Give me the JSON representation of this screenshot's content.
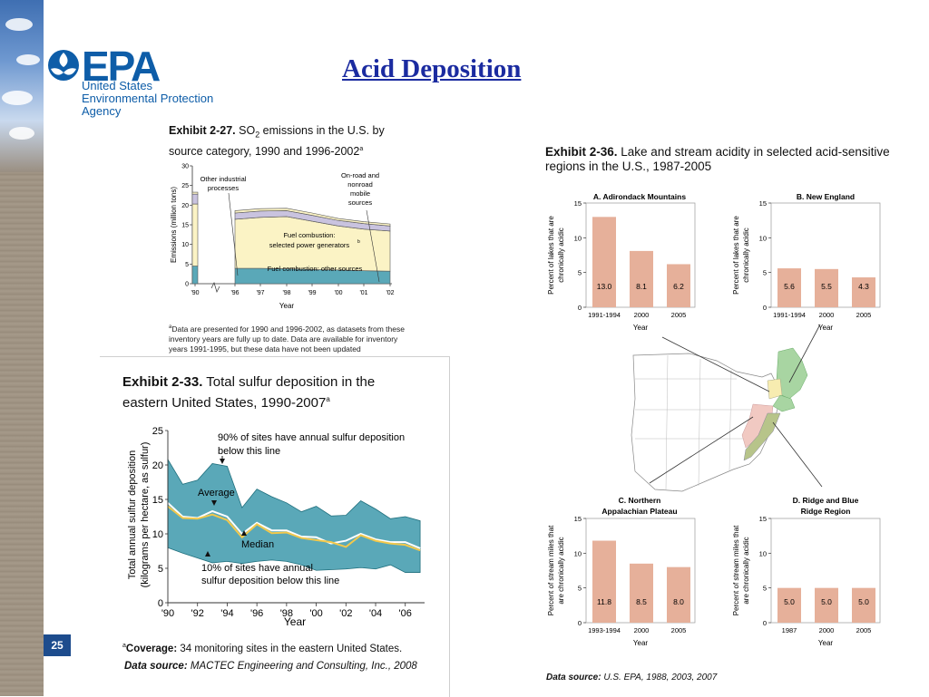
{
  "slide": {
    "title": "Acid Deposition",
    "page_number": "25",
    "logo": {
      "word": "EPA",
      "line1": "United States",
      "line2": "Environmental Protection",
      "line3": "Agency"
    }
  },
  "exhibit_27": {
    "label": "Exhibit 2-27.",
    "title_pre": "SO",
    "title_sub": "2",
    "title_post": " emissions in the U.S. by source category, 1990 and 1996-2002",
    "title_sup": "a",
    "footnote_mark": "a",
    "footnote_text": "Data are presented for 1990 and 1996-2002, as datasets from these inventory years are fully up to date. Data are available for inventory years 1991-1995, but these data have not been updated"
  },
  "exhibit_33": {
    "label": "Exhibit 2-33.",
    "title": " Total sulfur deposition in the eastern United States, 1990-2007",
    "title_sup": "a",
    "coverage_mark": "a",
    "coverage_label": "Coverage:",
    "coverage_text": " 34 monitoring sites in the eastern United States.",
    "source_label": "Data source:",
    "source_text": " MACTEC Engineering and Consulting, Inc., 2008"
  },
  "exhibit_36": {
    "label": "Exhibit 2-36.",
    "title": " Lake and stream acidity in selected acid-sensitive regions in the U.S., 1987-2005",
    "source_label": "Data source:",
    "source_text": " U.S. EPA, 1988, 2003, 2007"
  },
  "colors": {
    "bar": "#e6b09a",
    "teal_band": "#5aa8b8",
    "yellow": "#fbf3c5",
    "teal_dark": "#1f6e7c",
    "average_line": "#ffffff",
    "median_line": "#f2c84b",
    "lavender": "#c9c3df",
    "map_green": "#a8d5a2",
    "map_pink": "#f1c9c2",
    "map_yellow": "#f7ecb0",
    "map_olive": "#b7c48a"
  },
  "chart_data": [
    {
      "id": "exhibit-2-27",
      "type": "area",
      "x": [
        "'90",
        "'96",
        "'97",
        "'98",
        "'99",
        "'00",
        "'01",
        "'02"
      ],
      "xlabel": "Year",
      "ylabel": "Emissions (million tons)",
      "yticks": [
        "0",
        "5",
        "10",
        "15",
        "20",
        "25",
        "30"
      ],
      "ylim": [
        0,
        30
      ],
      "series": [
        {
          "name": "Fuel combustion: other sources",
          "label_sup": "",
          "values": [
            4.5,
            3.9,
            3.9,
            3.8,
            3.6,
            3.5,
            3.3,
            3.2
          ]
        },
        {
          "name": "Fuel combustion: selected power generators",
          "label_sup": "b",
          "values": [
            15.8,
            12.5,
            13.0,
            13.3,
            12.3,
            11.2,
            10.6,
            10.2
          ]
        },
        {
          "name": "Other industrial processes",
          "label_sup": "",
          "values": [
            2.5,
            1.6,
            1.6,
            1.5,
            1.5,
            1.4,
            1.4,
            1.3
          ]
        },
        {
          "name": "On-road and nonroad mobile sources",
          "label_sup": "",
          "values": [
            0.5,
            0.6,
            0.6,
            0.6,
            0.6,
            0.5,
            0.5,
            0.5
          ]
        }
      ],
      "stacked": true,
      "axis_break_between": [
        "'90",
        "'96"
      ]
    },
    {
      "id": "exhibit-2-33",
      "type": "line",
      "x": [
        1990,
        1991,
        1992,
        1993,
        1994,
        1995,
        1996,
        1997,
        1998,
        1999,
        2000,
        2001,
        2002,
        2003,
        2004,
        2005,
        2006,
        2007
      ],
      "xticks": [
        "'90",
        "'92",
        "'94",
        "'96",
        "'98",
        "'00",
        "'02",
        "'04",
        "'06"
      ],
      "xlabel": "Year",
      "ylabel_line1": "Total annual sulfur deposition",
      "ylabel_line2": "(kilograms per hectare, as sulfur)",
      "yticks": [
        "0",
        "5",
        "10",
        "15",
        "20",
        "25"
      ],
      "ylim": [
        0,
        25
      ],
      "band_upper": [
        20.8,
        17.2,
        17.8,
        20.2,
        19.8,
        13.8,
        16.5,
        15.4,
        14.5,
        13.2,
        14.0,
        12.6,
        12.7,
        14.8,
        13.6,
        12.2,
        12.5,
        11.9
      ],
      "band_lower": [
        8.0,
        7.2,
        6.5,
        5.8,
        6.0,
        5.7,
        6.0,
        6.2,
        6.0,
        5.5,
        4.7,
        4.8,
        4.9,
        5.1,
        4.9,
        5.5,
        4.4,
        4.4
      ],
      "series": [
        {
          "name": "Average",
          "values": [
            14.5,
            12.5,
            12.3,
            13.3,
            12.5,
            10.0,
            11.6,
            10.5,
            10.5,
            9.6,
            9.5,
            8.6,
            9.0,
            10.0,
            9.2,
            8.8,
            8.8,
            7.9
          ]
        },
        {
          "name": "Median",
          "values": [
            14.0,
            12.3,
            12.2,
            12.8,
            12.0,
            9.5,
            11.4,
            10.1,
            10.2,
            9.4,
            9.1,
            8.8,
            8.1,
            9.8,
            9.0,
            8.6,
            8.4,
            7.6
          ]
        }
      ],
      "annotations": {
        "upper": "90% of sites have annual sulfur deposition below this line",
        "upper_line1": "90% of sites have annual sulfur deposition",
        "upper_line2": "below this line",
        "lower_line1": "10% of sites have annual",
        "lower_line2": "sulfur deposition below this line",
        "average": "Average",
        "median": "Median"
      }
    },
    {
      "id": "exhibit-2-36-a",
      "type": "bar",
      "panel_title": "A. Adirondack Mountains",
      "categories": [
        "1991-1994",
        "2000",
        "2005"
      ],
      "values": [
        13.0,
        8.1,
        6.2
      ],
      "labels": [
        "13.0",
        "8.1",
        "6.2"
      ],
      "ylabel_line1": "Percent of lakes that are",
      "ylabel_line2": "chronically acidic",
      "xlabel": "Year",
      "ylim": [
        0,
        15
      ]
    },
    {
      "id": "exhibit-2-36-b",
      "type": "bar",
      "panel_title": "B. New England",
      "categories": [
        "1991-1994",
        "2000",
        "2005"
      ],
      "values": [
        5.6,
        5.5,
        4.3
      ],
      "labels": [
        "5.6",
        "5.5",
        "4.3"
      ],
      "ylabel_line1": "Percent of lakes that are",
      "ylabel_line2": "chronically acidic",
      "xlabel": "Year",
      "ylim": [
        0,
        15
      ]
    },
    {
      "id": "exhibit-2-36-c",
      "type": "bar",
      "panel_title_line1": "C. Northern",
      "panel_title_line2": "Appalachian Plateau",
      "categories": [
        "1993-1994",
        "2000",
        "2005"
      ],
      "values": [
        11.8,
        8.5,
        8.0
      ],
      "labels": [
        "11.8",
        "8.5",
        "8.0"
      ],
      "ylabel_line1": "Percent of stream miles that",
      "ylabel_line2": "are chronically acidic",
      "xlabel": "Year",
      "ylim": [
        0,
        15
      ]
    },
    {
      "id": "exhibit-2-36-d",
      "type": "bar",
      "panel_title_line1": "D. Ridge and Blue",
      "panel_title_line2": "Ridge Region",
      "categories": [
        "1987",
        "2000",
        "2005"
      ],
      "values": [
        5.0,
        5.0,
        5.0
      ],
      "labels": [
        "5.0",
        "5.0",
        "5.0"
      ],
      "ylabel_line1": "Percent of stream miles that",
      "ylabel_line2": "are chronically acidic",
      "xlabel": "Year",
      "ylim": [
        0,
        15
      ]
    }
  ]
}
